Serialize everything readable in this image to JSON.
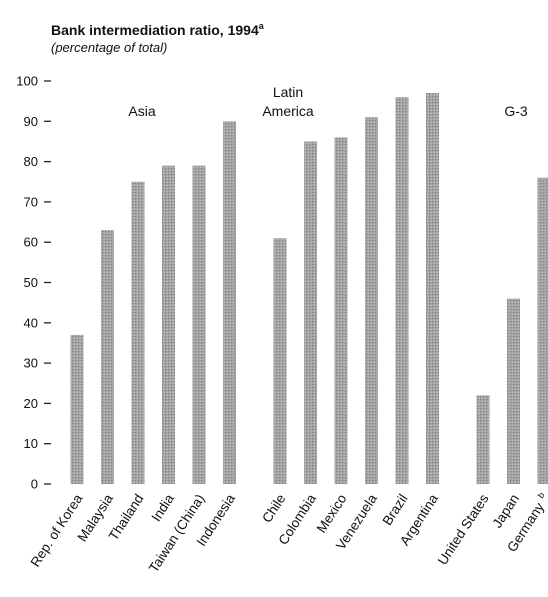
{
  "chart_data": {
    "type": "bar",
    "title": "Bank intermediation ratio, 1994",
    "title_superscript": "a",
    "subtitle": "(percentage of total)",
    "ylim": [
      0,
      100
    ],
    "yticks": [
      "0",
      "10",
      "20",
      "30",
      "40",
      "50",
      "60",
      "70",
      "80",
      "90",
      "100"
    ],
    "grid": false,
    "bar_color": "#9a9a9a",
    "groups": [
      {
        "label_lines": [
          "Asia"
        ],
        "categories": [
          "Rep. of Korea",
          "Malaysia",
          "Thailand",
          "India",
          "Taiwan (China)",
          "Indonesia"
        ],
        "values": [
          37,
          63,
          75,
          79,
          79,
          90
        ]
      },
      {
        "label_lines": [
          "Latin",
          "America"
        ],
        "categories": [
          "Chile",
          "Colombia",
          "Mexico",
          "Venezuela",
          "Brazil",
          "Argentina"
        ],
        "values": [
          61,
          85,
          86,
          91,
          96,
          97
        ]
      },
      {
        "label_lines": [
          "G-3"
        ],
        "categories": [
          "United States",
          "Japan",
          "Germany"
        ],
        "values": [
          22,
          46,
          76
        ]
      }
    ],
    "category_superscripts": {
      "Germany": "b"
    }
  }
}
